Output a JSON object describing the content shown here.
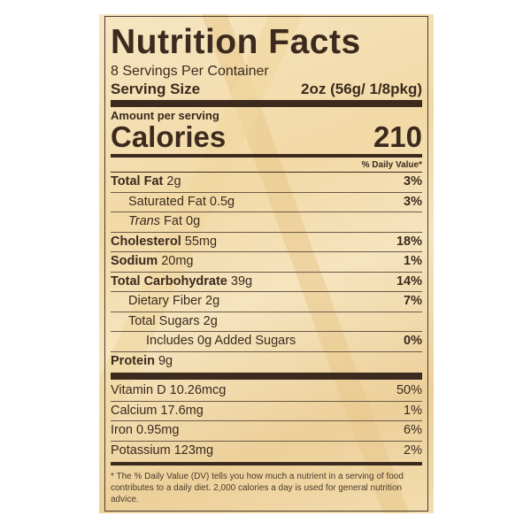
{
  "title": "Nutrition Facts",
  "servings_per_container": "8 Servings Per Container",
  "serving_size": {
    "label": "Serving Size",
    "value": "2oz (56g/ 1/8pkg)"
  },
  "amount_per_serving": "Amount per serving",
  "calories": {
    "label": "Calories",
    "value": "210"
  },
  "daily_value_header": "% Daily Value*",
  "nutrients": [
    {
      "label": "Total Fat",
      "amount": "2g",
      "dv": "3%"
    },
    {
      "label": "Saturated Fat",
      "amount": "0.5g",
      "dv": "3%"
    },
    {
      "label": "Trans",
      "label2": "Fat",
      "amount": "0g",
      "dv": ""
    },
    {
      "label": "Cholesterol",
      "amount": "55mg",
      "dv": "18%"
    },
    {
      "label": "Sodium",
      "amount": "20mg",
      "dv": "1%"
    },
    {
      "label": "Total Carbohydrate",
      "amount": "39g",
      "dv": "14%"
    },
    {
      "label": "Dietary Fiber",
      "amount": "2g",
      "dv": "7%"
    },
    {
      "label": "Total Sugars",
      "amount": "2g",
      "dv": ""
    },
    {
      "label": "Includes 0g Added Sugars",
      "amount": "",
      "dv": "0%"
    },
    {
      "label": "Protein",
      "amount": "9g",
      "dv": ""
    }
  ],
  "vitamins": [
    {
      "label": "Vitamin D",
      "amount": "10.26mcg",
      "dv": "50%"
    },
    {
      "label": "Calcium",
      "amount": "17.6mg",
      "dv": "1%"
    },
    {
      "label": "Iron",
      "amount": "0.95mg",
      "dv": "6%"
    },
    {
      "label": "Potassium",
      "amount": "123mg",
      "dv": "2%"
    }
  ],
  "footnote": "* The % Daily Value (DV) tells you how much a nutrient in a serving of food contributes to a daily diet. 2,000 calories a day is used for general nutrition advice."
}
